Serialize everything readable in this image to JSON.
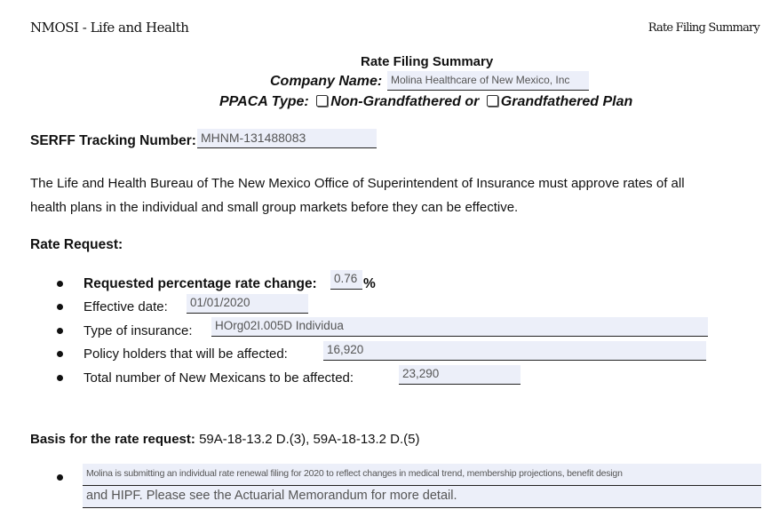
{
  "header": {
    "left": "NMOSI - Life and Health",
    "right": "Rate Filing Summary"
  },
  "title": "Rate Filing Summary",
  "company": {
    "label": "Company Name:",
    "value": "Molina Healthcare of New Mexico, Inc"
  },
  "ppaca": {
    "label": "PPACA Type:",
    "option1": "Non-Grandfathered or",
    "option2": "Grandfathered Plan"
  },
  "serff": {
    "label": "SERFF Tracking Number:",
    "value": "MHNM-131488083"
  },
  "intro": [
    "The Life and Health Bureau of The New Mexico Office of Superintendent of Insurance must approve rates of all",
    "health plans in the individual and small group markets before they can be effective."
  ],
  "rate_request": {
    "heading": "Rate Request:",
    "items": [
      {
        "label": "Requested  percentage rate change:",
        "value": "0.76",
        "suffix": "%"
      },
      {
        "label": "Effective date:",
        "value": "01/01/2020"
      },
      {
        "label": "Type of insurance:",
        "value": "HOrg02I.005D Individua"
      },
      {
        "label": "Policy holders that will be affected:",
        "value": "16,920"
      },
      {
        "label": "Total number of New Mexicans to be affected:",
        "value": "23,290"
      }
    ]
  },
  "basis": {
    "label": "Basis for the rate request:",
    "value": "59A-18-13.2 D.(3),  59A-18-13.2 D.(5)",
    "line1": "Molina is submitting an individual rate renewal filing for 2020 to reflect changes in medical trend, membership projections, benefit design",
    "line2": "and HIPF. Please see the Actuarial Memorandum for more detail."
  }
}
